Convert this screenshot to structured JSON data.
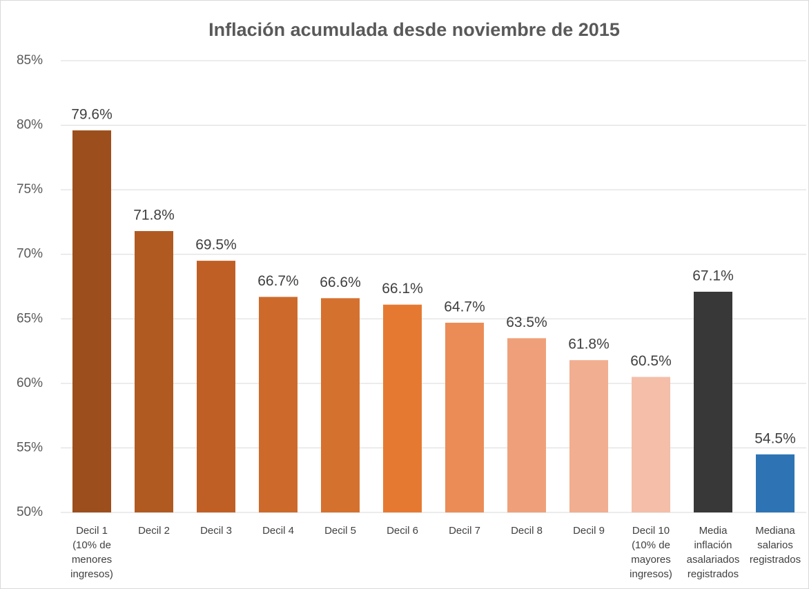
{
  "chart_data": {
    "type": "bar",
    "title": "Inflación acumulada desde noviembre de 2015",
    "categories": [
      "Decil 1\n(10% de\nmenores\ningresos)",
      "Decil 2",
      "Decil 3",
      "Decil 4",
      "Decil 5",
      "Decil 6",
      "Decil 7",
      "Decil 8",
      "Decil 9",
      "Decil 10\n(10% de\nmayores\ningresos)",
      "Media\ninflación\nasalariados\nregistrados",
      "Mediana\nsalarios\nregistrados"
    ],
    "values": [
      79.6,
      71.8,
      69.5,
      66.7,
      66.6,
      66.1,
      64.7,
      63.5,
      61.8,
      60.5,
      67.1,
      54.5
    ],
    "value_labels": [
      "79.6%",
      "71.8%",
      "69.5%",
      "66.7%",
      "66.6%",
      "66.1%",
      "64.7%",
      "63.5%",
      "61.8%",
      "60.5%",
      "67.1%",
      "54.5%"
    ],
    "colors": [
      "#9c4f1c",
      "#b05a22",
      "#c05f25",
      "#cd6a2b",
      "#d5712f",
      "#e57932",
      "#eb8c57",
      "#efa07a",
      "#f1ae90",
      "#f4bea8",
      "#383838",
      "#2e74b5"
    ],
    "ylim": [
      50,
      85
    ],
    "yticks": [
      {
        "value": 50,
        "label": "50%"
      },
      {
        "value": 55,
        "label": "55%"
      },
      {
        "value": 60,
        "label": "60%"
      },
      {
        "value": 65,
        "label": "65%"
      },
      {
        "value": 70,
        "label": "70%"
      },
      {
        "value": 75,
        "label": "75%"
      },
      {
        "value": 80,
        "label": "80%"
      },
      {
        "value": 85,
        "label": "85%"
      }
    ],
    "grid": true
  }
}
